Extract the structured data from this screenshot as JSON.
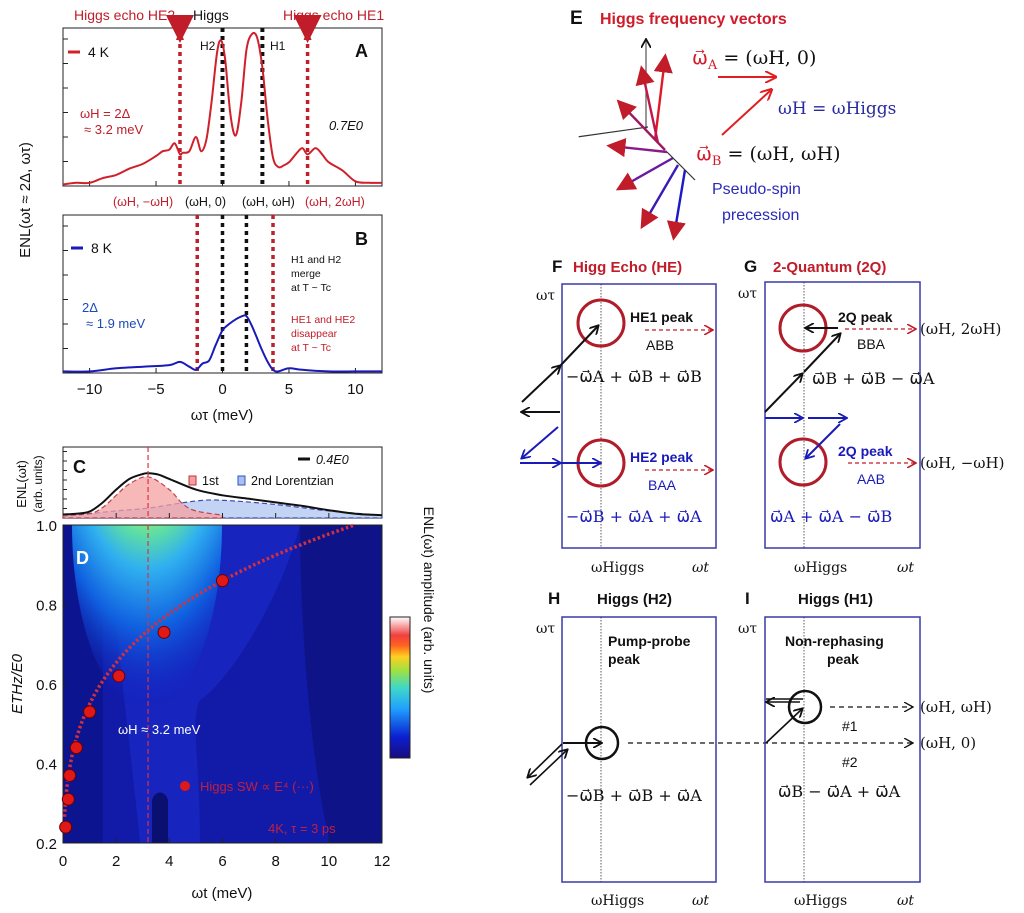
{
  "colors": {
    "red": "#d0202a",
    "darkred": "#b01c2a",
    "blue": "#1a1ab8",
    "frameblue": "#3a3aa8",
    "black": "#111111",
    "purple": "#7a1a9a"
  },
  "chart_data": [
    {
      "panel": "A",
      "type": "line",
      "title": "A",
      "legend": "4 K",
      "annotation_field": "0.7E0",
      "annotation_gap": [
        "ωH = 2Δ",
        "≈ 3.2 meV"
      ],
      "top_labels": [
        "Higgs echo HE2",
        "Higgs",
        "Higgs echo HE1"
      ],
      "peak_labels": [
        "H2",
        "H1"
      ],
      "xlim": [
        -12,
        12
      ],
      "ylim": [
        0,
        1
      ],
      "vlines_black": [
        0,
        3.0
      ],
      "vlines_red": [
        -3.2,
        6.4
      ],
      "x": [
        -12,
        -11,
        -10,
        -9,
        -8,
        -7,
        -6,
        -5,
        -4.5,
        -4,
        -3.6,
        -3.2,
        -3,
        -2.5,
        -2,
        -1.6,
        -1.2,
        -0.8,
        -0.4,
        -0.1,
        0.2,
        0.6,
        1.0,
        1.4,
        1.8,
        2.2,
        2.6,
        3.0,
        3.4,
        3.8,
        4.2,
        4.6,
        5.0,
        5.5,
        6,
        6.4,
        7,
        7.5,
        8,
        9,
        10,
        11,
        12
      ],
      "y": [
        0.01,
        0.02,
        0.02,
        0.05,
        0.07,
        0.11,
        0.14,
        0.19,
        0.22,
        0.23,
        0.27,
        0.2,
        0.21,
        0.22,
        0.31,
        0.22,
        0.3,
        0.55,
        0.85,
        0.92,
        0.8,
        0.45,
        0.32,
        0.52,
        0.86,
        0.96,
        0.94,
        0.75,
        0.42,
        0.18,
        0.12,
        0.13,
        0.15,
        0.2,
        0.24,
        0.2,
        0.24,
        0.2,
        0.15,
        0.1,
        0.03,
        0.02,
        0.02
      ],
      "color": "#d0202a"
    },
    {
      "panel": "B",
      "type": "line",
      "title": "B",
      "legend": "8 K",
      "annotation_gap": [
        "2Δ",
        "≈ 1.9 meV"
      ],
      "annotation_merge": [
        "H1 and H2",
        "merge",
        "at T ~ Tc"
      ],
      "annotation_disappear": [
        "HE1 and HE2",
        "disappear",
        "at T ~ Tc"
      ],
      "top_labels": [
        "(ωH, −ωH)",
        "(ωH, 0)",
        "(ωH, ωH)",
        "(ωH, 2ωH)"
      ],
      "xlabel": "ωτ (meV)",
      "xticks": [
        -10,
        -5,
        0,
        5,
        10
      ],
      "xlim": [
        -12,
        12
      ],
      "ylim": [
        0,
        1
      ],
      "vlines_black": [
        0,
        1.8
      ],
      "vlines_red": [
        -1.9,
        3.8
      ],
      "x": [
        -12,
        -10,
        -8,
        -6,
        -4,
        -3.2,
        -2.5,
        -2,
        -1.5,
        -1,
        -0.5,
        0,
        0.5,
        1,
        1.5,
        1.8,
        2.2,
        2.6,
        3,
        3.4,
        3.8,
        4.2,
        5,
        6,
        8,
        10,
        12
      ],
      "y": [
        0.01,
        0.01,
        0.03,
        0.04,
        0.05,
        0.07,
        0.04,
        0.02,
        0.06,
        0.08,
        0.18,
        0.27,
        0.31,
        0.34,
        0.36,
        0.36,
        0.3,
        0.22,
        0.14,
        0.07,
        0.02,
        0.01,
        0.03,
        0.02,
        0.01,
        0.01,
        0.01
      ],
      "color": "#1a1ab8"
    },
    {
      "panel": "C",
      "type": "area",
      "title": "C",
      "ylabel": [
        "ENL(ωt)",
        "(arb. units)"
      ],
      "legend": [
        "0.4E0",
        "1st",
        "2nd Lorentzian"
      ],
      "xlim": [
        0,
        12
      ],
      "vline_x": 3.2,
      "total_x": [
        0,
        0.5,
        1,
        1.5,
        2,
        2.5,
        3,
        3.2,
        3.6,
        4,
        5,
        6,
        7,
        8,
        9,
        10,
        11,
        12
      ],
      "total_y": [
        0.05,
        0.06,
        0.09,
        0.22,
        0.4,
        0.55,
        0.62,
        0.63,
        0.61,
        0.55,
        0.4,
        0.32,
        0.27,
        0.22,
        0.17,
        0.11,
        0.06,
        0.04
      ],
      "first_x": [
        0,
        1,
        1.5,
        2,
        2.5,
        3.2,
        4,
        4.5,
        5,
        6
      ],
      "first_y": [
        0.04,
        0.06,
        0.15,
        0.32,
        0.48,
        0.58,
        0.4,
        0.2,
        0.1,
        0.04
      ],
      "second_x": [
        0,
        2,
        3.2,
        5,
        6,
        8,
        10,
        12
      ],
      "second_y": [
        0.02,
        0.1,
        0.14,
        0.24,
        0.25,
        0.19,
        0.1,
        0.04
      ]
    },
    {
      "panel": "D",
      "type": "heatmap",
      "title": "D",
      "xlabel": "ωt (meV)",
      "ylabel": "ETHz/E0",
      "xticks": [
        0,
        2,
        4,
        6,
        8,
        10,
        12
      ],
      "yticks": [
        0.2,
        0.4,
        0.6,
        0.8,
        1.0
      ],
      "ytick_labels": [
        "0.2",
        "0.4",
        "0.6",
        "0.8",
        "1.0"
      ],
      "xlim": [
        0,
        12
      ],
      "ylim": [
        0.2,
        1.0
      ],
      "vline_x": 3.2,
      "colorbar_label": "ENL(ωt) amplitude (arb. units)",
      "annotation_wH": "ωH ≈ 3.2 meV",
      "legend": "Higgs SW ∝ E⁴ (···)",
      "condition": "4K, τ = 3 ps",
      "points_x": [
        0.1,
        0.2,
        0.25,
        0.5,
        1.0,
        2.1,
        3.8,
        6.0
      ],
      "points_y": [
        0.24,
        0.31,
        0.37,
        0.44,
        0.53,
        0.62,
        0.73,
        0.86
      ],
      "fit_note": "E^4 dotted curve"
    }
  ],
  "panelE": {
    "letter": "E",
    "title": "Higgs frequency vectors",
    "omegaA": "ω⃗A = (ωH, 0)",
    "omegaA_sym": "ω⃗",
    "omegaA_sub": "A",
    "omegaA_rhs": " = (ωH, 0)",
    "omegaB_sym": "ω⃗",
    "omegaB_sub": "B",
    "omegaB_rhs": " = (ωH, ωH)",
    "omegaH": "ωH = ωHiggs",
    "pseudo1": "Pseudo-spin",
    "pseudo2": "precession"
  },
  "panelF": {
    "letter": "F",
    "title": "Higg Echo (HE)",
    "ytitle": "ωτ",
    "xtick": "ωHiggs",
    "xtitle": "ωt",
    "peak1": "HE1 peak",
    "peak1_code": "ABB",
    "peak1_eq": "−ω⃗A + ω⃗B + ω⃗B",
    "peak2": "HE2 peak",
    "peak2_code": "BAA",
    "peak2_eq": "−ω⃗B + ω⃗A + ω⃗A"
  },
  "panelG": {
    "letter": "G",
    "title": "2-Quantum (2Q)",
    "ytitle": "ωτ",
    "xtick": "ωHiggs",
    "xtitle": "ωt",
    "peak1": "2Q peak",
    "peak1_code": "BBA",
    "peak1_eq": "ω⃗B + ω⃗B − ω⃗A",
    "peak1_coord": "(ωH, 2ωH)",
    "peak2": "2Q peak",
    "peak2_code": "AAB",
    "peak2_eq": "ω⃗A + ω⃗A − ω⃗B",
    "peak2_coord": "(ωH, −ωH)"
  },
  "panelH": {
    "letter": "H",
    "title": "Higgs (H2)",
    "ytitle": "ωτ",
    "xtick": "ωHiggs",
    "xtitle": "ωt",
    "peak1": "Pump-probe",
    "peak2": "peak",
    "eq": "−ω⃗B + ω⃗B + ω⃗A"
  },
  "panelI": {
    "letter": "I",
    "title": "Higgs (H1)",
    "ytitle": "ωτ",
    "xtick": "ωHiggs",
    "xtitle": "ωt",
    "peak1": "Non-rephasing",
    "peak2": "peak",
    "path1": "#1",
    "path2": "#2",
    "coord1": "(ωH, ωH)",
    "coord2": "(ωH, 0)",
    "eq": "ω⃗B − ω⃗A + ω⃗A"
  },
  "yaxisAB": "ENL(ωt ≈ 2Δ, ωτ)"
}
